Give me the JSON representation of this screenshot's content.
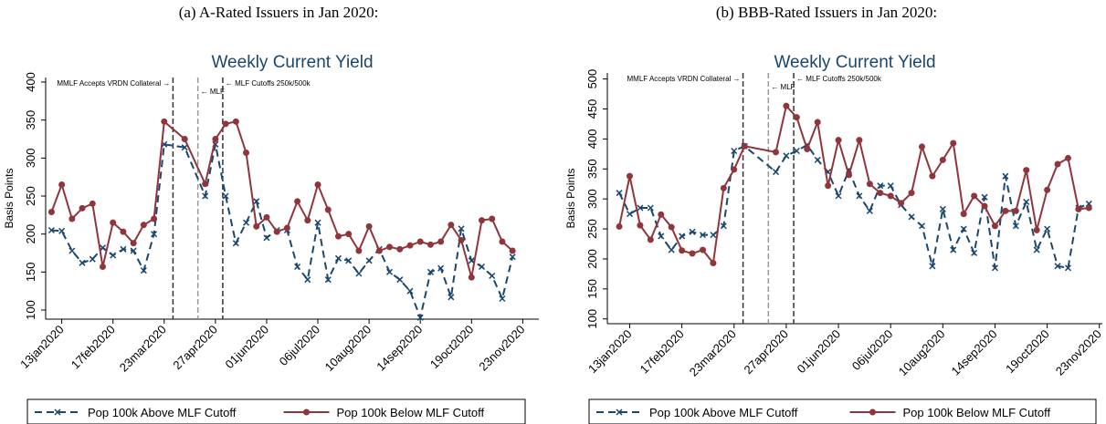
{
  "chart_data": [
    {
      "type": "line",
      "caption": "(a) A-Rated Issuers in Jan 2020:",
      "title": "Weekly Current Yield",
      "ylabel": "Basis Points",
      "x": [
        "2020-01-06",
        "2020-01-13",
        "2020-01-20",
        "2020-01-27",
        "2020-02-03",
        "2020-02-10",
        "2020-02-17",
        "2020-02-24",
        "2020-03-02",
        "2020-03-09",
        "2020-03-16",
        "2020-03-23",
        "2020-04-06",
        "2020-04-20",
        "2020-04-27",
        "2020-05-04",
        "2020-05-11",
        "2020-05-18",
        "2020-05-25",
        "2020-06-01",
        "2020-06-08",
        "2020-06-15",
        "2020-06-22",
        "2020-06-29",
        "2020-07-06",
        "2020-07-13",
        "2020-07-20",
        "2020-07-27",
        "2020-08-03",
        "2020-08-10",
        "2020-08-17",
        "2020-08-24",
        "2020-08-31",
        "2020-09-07",
        "2020-09-14",
        "2020-09-21",
        "2020-09-28",
        "2020-10-05",
        "2020-10-12",
        "2020-10-19",
        "2020-10-26",
        "2020-11-02",
        "2020-11-09",
        "2020-11-16"
      ],
      "series": [
        {
          "name": "Pop 100k Above MLF Cutoff",
          "color": "#1a476f",
          "style": "dashed",
          "marker": "x",
          "values": [
            205,
            204,
            178,
            162,
            167,
            182,
            172,
            180,
            178,
            152,
            200,
            318,
            314,
            250,
            318,
            250,
            188,
            215,
            243,
            195,
            205,
            205,
            157,
            140,
            215,
            140,
            168,
            165,
            148,
            165,
            180,
            150,
            140,
            125,
            90,
            150,
            155,
            117,
            207,
            165,
            157,
            145,
            115,
            170
          ]
        },
        {
          "name": "Pop 100k Below MLF Cutoff",
          "color": "#90353b",
          "style": "solid",
          "marker": "circle",
          "values": [
            229,
            265,
            220,
            234,
            240,
            157,
            215,
            203,
            188,
            212,
            220,
            348,
            325,
            266,
            325,
            345,
            348,
            307,
            210,
            222,
            203,
            208,
            243,
            218,
            265,
            232,
            197,
            200,
            178,
            210,
            178,
            183,
            180,
            185,
            190,
            186,
            190,
            212,
            192,
            143,
            218,
            220,
            190,
            178
          ]
        }
      ],
      "xlim": [
        "2020-01-02",
        "2020-12-04"
      ],
      "xticks": [
        {
          "value": "2020-01-13",
          "label": "13jan2020"
        },
        {
          "value": "2020-02-17",
          "label": "17feb2020"
        },
        {
          "value": "2020-03-23",
          "label": "23mar2020"
        },
        {
          "value": "2020-04-27",
          "label": "27apr2020"
        },
        {
          "value": "2020-06-01",
          "label": "01jun2020"
        },
        {
          "value": "2020-07-06",
          "label": "06jul2020"
        },
        {
          "value": "2020-08-10",
          "label": "10aug2020"
        },
        {
          "value": "2020-09-14",
          "label": "14sep2020"
        },
        {
          "value": "2020-10-19",
          "label": "19oct2020"
        },
        {
          "value": "2020-11-23",
          "label": "23nov2020"
        }
      ],
      "ylim": [
        88,
        406
      ],
      "yticks": [
        100,
        150,
        200,
        250,
        300,
        350,
        400
      ],
      "annotations": [
        {
          "x": "2020-03-29",
          "text": "MMLF Accepts VRDN Collateral →",
          "color": "#333333",
          "side": "left"
        },
        {
          "x": "2020-04-15",
          "text": "← MLF",
          "color": "#999999",
          "side": "right"
        },
        {
          "x": "2020-05-02",
          "text": "← MLF Cutoffs 250k/500k",
          "color": "#333333",
          "side": "right"
        }
      ]
    },
    {
      "type": "line",
      "caption": "(b) BBB-Rated Issuers in Jan 2020:",
      "title": "Weekly Current Yield",
      "ylabel": "Basis Points",
      "x": [
        "2020-01-06",
        "2020-01-13",
        "2020-01-20",
        "2020-01-27",
        "2020-02-03",
        "2020-02-10",
        "2020-02-17",
        "2020-02-24",
        "2020-03-02",
        "2020-03-09",
        "2020-03-16",
        "2020-03-23",
        "2020-03-30",
        "2020-04-20",
        "2020-04-27",
        "2020-05-04",
        "2020-05-11",
        "2020-05-18",
        "2020-05-25",
        "2020-06-01",
        "2020-06-08",
        "2020-06-15",
        "2020-06-22",
        "2020-06-29",
        "2020-07-06",
        "2020-07-13",
        "2020-07-20",
        "2020-07-27",
        "2020-08-03",
        "2020-08-10",
        "2020-08-17",
        "2020-08-24",
        "2020-08-31",
        "2020-09-07",
        "2020-09-14",
        "2020-09-21",
        "2020-09-28",
        "2020-10-05",
        "2020-10-12",
        "2020-10-19",
        "2020-10-26",
        "2020-11-02",
        "2020-11-09",
        "2020-11-16"
      ],
      "series": [
        {
          "name": "Pop 100k Above MLF Cutoff",
          "color": "#1a476f",
          "style": "dashed",
          "marker": "x",
          "values": [
            310,
            275,
            285,
            285,
            238,
            215,
            238,
            245,
            240,
            240,
            255,
            380,
            388,
            345,
            372,
            380,
            390,
            365,
            345,
            305,
            348,
            305,
            280,
            322,
            322,
            290,
            270,
            255,
            188,
            283,
            215,
            250,
            210,
            303,
            185,
            338,
            255,
            295,
            215,
            250,
            188,
            185,
            285,
            292
          ]
        },
        {
          "name": "Pop 100k Below MLF Cutoff",
          "color": "#90353b",
          "style": "solid",
          "marker": "circle",
          "values": [
            254,
            338,
            256,
            232,
            274,
            253,
            214,
            209,
            215,
            193,
            318,
            349,
            388,
            378,
            455,
            436,
            383,
            428,
            322,
            398,
            340,
            398,
            325,
            310,
            305,
            293,
            310,
            387,
            338,
            365,
            393,
            275,
            305,
            288,
            255,
            280,
            280,
            348,
            248,
            315,
            358,
            368,
            283,
            285
          ]
        }
      ],
      "xlim": [
        "2019-12-29",
        "2020-11-25"
      ],
      "xticks": [
        {
          "value": "2020-01-13",
          "label": "13jan2020"
        },
        {
          "value": "2020-02-17",
          "label": "17feb2020"
        },
        {
          "value": "2020-03-23",
          "label": "23mar2020"
        },
        {
          "value": "2020-04-27",
          "label": "27apr2020"
        },
        {
          "value": "2020-06-01",
          "label": "01jun2020"
        },
        {
          "value": "2020-07-06",
          "label": "06jul2020"
        },
        {
          "value": "2020-08-10",
          "label": "10aug2020"
        },
        {
          "value": "2020-09-14",
          "label": "14sep2020"
        },
        {
          "value": "2020-10-19",
          "label": "19oct2020"
        },
        {
          "value": "2020-11-23",
          "label": "23nov2020"
        }
      ],
      "ylim": [
        92,
        510
      ],
      "yticks": [
        100,
        150,
        200,
        250,
        300,
        350,
        400,
        450,
        500
      ],
      "annotations": [
        {
          "x": "2020-03-29",
          "text": "MMLF Accepts VRDN Collateral →",
          "color": "#333333",
          "side": "left"
        },
        {
          "x": "2020-04-15",
          "text": "← MLF",
          "color": "#999999",
          "side": "right"
        },
        {
          "x": "2020-05-02",
          "text": "← MLF Cutoffs 250k/500k",
          "color": "#333333",
          "side": "right"
        }
      ]
    }
  ]
}
